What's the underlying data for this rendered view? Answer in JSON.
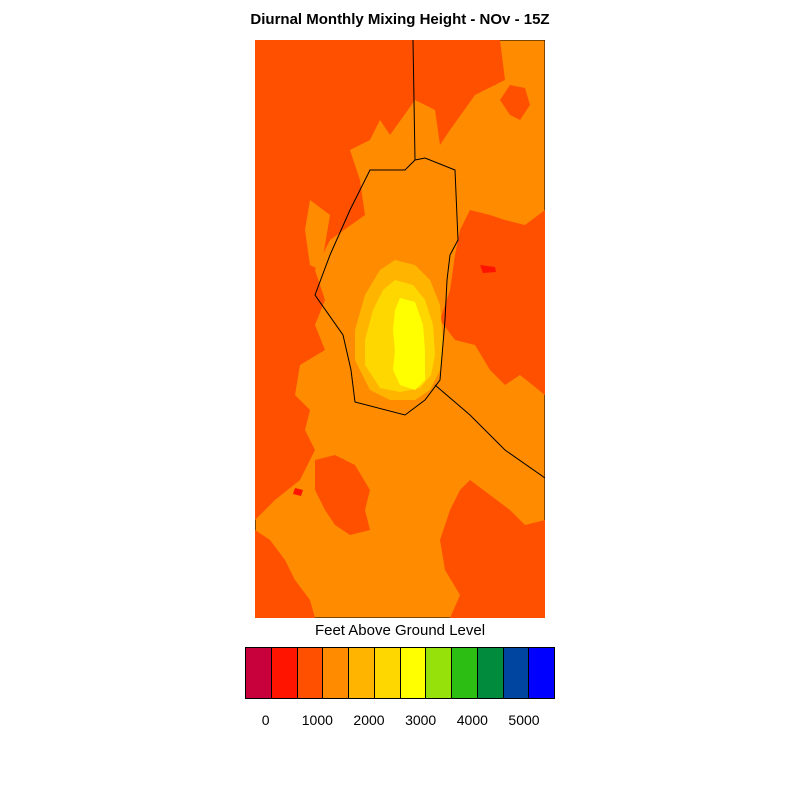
{
  "title": "Diurnal Monthly Mixing Height - NOv - 15Z",
  "legend": {
    "label": "Feet Above Ground Level",
    "colors": [
      "#c8003c",
      "#ff1400",
      "#ff5000",
      "#ff8c00",
      "#ffb400",
      "#ffd700",
      "#ffff00",
      "#96e10a",
      "#2dbe14",
      "#008c3c",
      "#0046a0",
      "#0000ff"
    ],
    "ticks": [
      "0",
      "1000",
      "2000",
      "3000",
      "4000",
      "5000"
    ]
  },
  "map": {
    "background_color": "#ff8c00",
    "level_colors": {
      "below_1000": "#ff5000",
      "1000_1500": "#ff8c00",
      "1500_2000": "#ffb400",
      "2000_2500": "#ffd700",
      "2500_3000": "#ffff00",
      "near_zero": "#ff1400"
    }
  }
}
